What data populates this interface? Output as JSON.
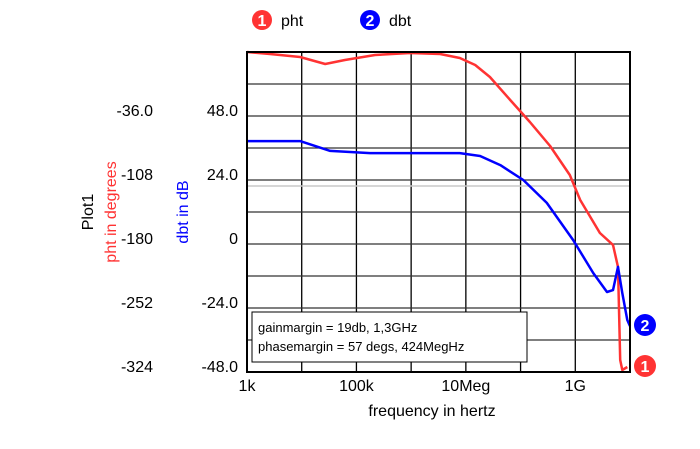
{
  "chart_data": {
    "type": "line",
    "title": "Plot1",
    "xlabel": "frequency in hertz",
    "x_scale": "log",
    "xlim_hz": [
      1000,
      10000000000
    ],
    "x_ticks": [
      {
        "label": "1k",
        "log10_hz": 3
      },
      {
        "label": "100k",
        "log10_hz": 5
      },
      {
        "label": "10Meg",
        "log10_hz": 7
      },
      {
        "label": "1G",
        "log10_hz": 9
      }
    ],
    "grid": true,
    "y_axes": [
      {
        "id": "phase",
        "label": "pht in degrees",
        "color": "#ff3333",
        "ylim": [
          -324,
          36
        ],
        "ticks": [
          "-36.0",
          "-108",
          "-180",
          "-252",
          "-324"
        ],
        "tick_values": [
          -36,
          -108,
          -180,
          -252,
          -324
        ]
      },
      {
        "id": "db",
        "label": "dbt in dB",
        "color": "#0000ff",
        "ylim": [
          -48,
          72
        ],
        "ticks": [
          "48.0",
          "24.0",
          "0",
          "-24.0",
          "-48.0"
        ],
        "tick_values": [
          48,
          24,
          0,
          -24,
          -48
        ]
      }
    ],
    "reference_line_db": 21.75,
    "series": [
      {
        "name": "pht",
        "marker": "1",
        "axis": "phase",
        "color": "#ff3333",
        "log10_hz": [
          3.0,
          3.42,
          3.97,
          4.43,
          4.79,
          5.34,
          5.98,
          6.53,
          6.89,
          7.17,
          7.44,
          7.81,
          8.17,
          8.54,
          8.9,
          9.09,
          9.45,
          9.69,
          9.78,
          9.82,
          9.86,
          9.95
        ],
        "values": [
          36,
          33.8,
          30.4,
          22.5,
          27,
          32.6,
          34.9,
          33.8,
          29.3,
          21.4,
          7.9,
          -18,
          -42.8,
          -69.8,
          -102.4,
          -130.5,
          -167.6,
          -181,
          -205.9,
          -310.5,
          -321.8,
          -318.4
        ]
      },
      {
        "name": "dbt",
        "marker": "2",
        "axis": "db",
        "color": "#0000ff",
        "log10_hz": [
          3.0,
          3.97,
          4.52,
          5.25,
          6.89,
          7.26,
          7.63,
          8.05,
          8.48,
          8.96,
          9.33,
          9.58,
          9.69,
          9.78,
          9.86,
          9.95,
          10.0
        ],
        "values": [
          38.6,
          38.6,
          34.9,
          34.1,
          34.1,
          33,
          29.6,
          24,
          15.4,
          1.5,
          -10.9,
          -18,
          -17.3,
          -8.6,
          -18.4,
          -28.5,
          -30.8
        ]
      }
    ],
    "legend_placement": "top",
    "annotations": [
      "gainmargin = 19db, 1,3GHz",
      "phasemargin = 57 degs, 424MegHz"
    ]
  }
}
